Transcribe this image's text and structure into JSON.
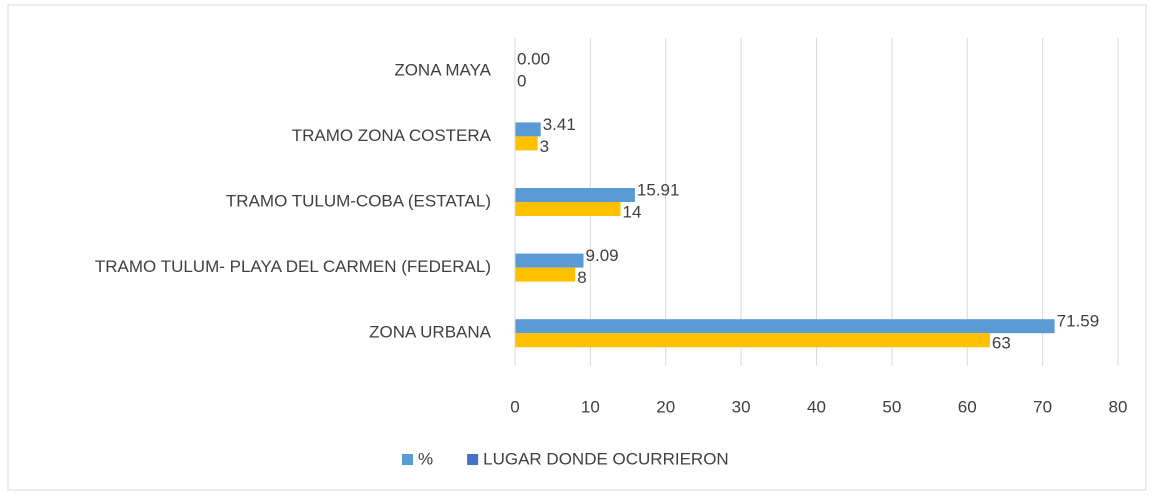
{
  "chart_data": {
    "type": "hbar",
    "categories": [
      "ZONA MAYA",
      "TRAMO ZONA COSTERA",
      "TRAMO TULUM-COBA (ESTATAL)",
      "TRAMO TULUM- PLAYA DEL CARMEN (FEDERAL)",
      "ZONA URBANA"
    ],
    "series": [
      {
        "name": "%",
        "color": "#5b9bd5",
        "values": [
          0,
          3.41,
          15.91,
          9.09,
          71.59
        ],
        "value_labels": [
          "0.00",
          "3.41",
          "15.91",
          "9.09",
          "71.59"
        ]
      },
      {
        "name": "LUGAR DONDE OCURRIERON",
        "color": "#ffc000",
        "legend_color": "#4472c4",
        "values": [
          0,
          3,
          14,
          8,
          63
        ]
      }
    ],
    "xlim": [
      0,
      80
    ],
    "xticks": [
      0,
      10,
      20,
      30,
      40,
      50,
      60,
      70,
      80
    ],
    "grid": true,
    "legend": "bottom"
  }
}
